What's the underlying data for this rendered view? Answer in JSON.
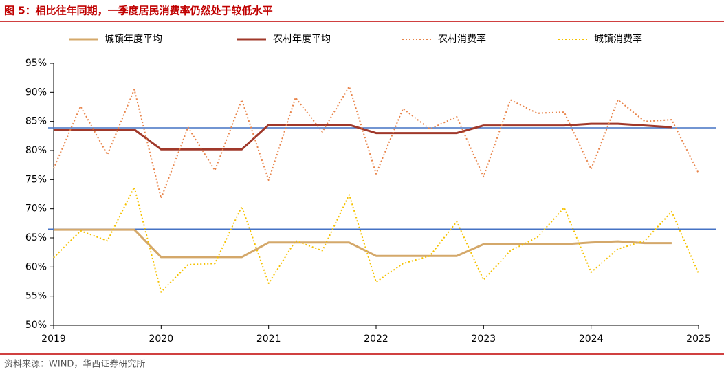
{
  "chart_data": {
    "type": "line",
    "title": "图 5：相比往年同期，一季度居民消费率仍然处于较低水平",
    "source": "资料来源：WIND，华西证券研究所",
    "x": [
      2019,
      2019.25,
      2019.5,
      2019.75,
      2020,
      2020.25,
      2020.5,
      2020.75,
      2021,
      2021.25,
      2021.5,
      2021.75,
      2022,
      2022.25,
      2022.5,
      2022.75,
      2023,
      2023.25,
      2023.5,
      2023.75,
      2024,
      2024.25,
      2024.5,
      2024.75,
      2025
    ],
    "xlim": [
      2019,
      2025
    ],
    "xticks": [
      2019,
      2020,
      2021,
      2022,
      2023,
      2024,
      2025
    ],
    "ylim": [
      50,
      95
    ],
    "yticks": [
      {
        "value": 50,
        "label": "50%"
      },
      {
        "value": 55,
        "label": "55%"
      },
      {
        "value": 60,
        "label": "60%"
      },
      {
        "value": 65,
        "label": "65%"
      },
      {
        "value": 70,
        "label": "70%"
      },
      {
        "value": 75,
        "label": "75%"
      },
      {
        "value": 80,
        "label": "80%"
      },
      {
        "value": 85,
        "label": "85%"
      },
      {
        "value": 90,
        "label": "90%"
      },
      {
        "value": 95,
        "label": "95%"
      }
    ],
    "series": [
      {
        "name": "城镇年度平均",
        "color": "#d4a86a",
        "style": "solid",
        "values": [
          66.4,
          66.4,
          66.4,
          66.4,
          61.7,
          61.7,
          61.7,
          61.7,
          64.2,
          64.2,
          64.2,
          64.2,
          61.9,
          61.9,
          61.9,
          61.9,
          63.9,
          63.9,
          63.9,
          63.9,
          64.2,
          64.4,
          64.1,
          64.1,
          null
        ]
      },
      {
        "name": "农村年度平均",
        "color": "#a0382a",
        "style": "solid",
        "values": [
          83.6,
          83.6,
          83.6,
          83.6,
          80.2,
          80.2,
          80.2,
          80.2,
          84.4,
          84.4,
          84.4,
          84.4,
          83.0,
          83.0,
          83.0,
          83.0,
          84.3,
          84.3,
          84.3,
          84.3,
          84.6,
          84.6,
          84.3,
          84.0,
          null
        ]
      },
      {
        "name": "农村消费率",
        "color": "#e8844a",
        "style": "dotted",
        "values": [
          76.9,
          87.6,
          79.3,
          90.5,
          71.8,
          84.0,
          76.6,
          88.7,
          74.9,
          89.1,
          83.2,
          91.0,
          76.0,
          87.2,
          83.7,
          85.8,
          75.5,
          88.7,
          86.4,
          86.6,
          76.8,
          88.7,
          85.0,
          85.3,
          76.1
        ]
      },
      {
        "name": "城镇消费率",
        "color": "#f5c100",
        "style": "dotted",
        "values": [
          61.6,
          66.2,
          64.5,
          73.7,
          55.7,
          60.4,
          60.6,
          70.4,
          57.2,
          64.5,
          62.8,
          72.4,
          57.4,
          60.6,
          61.9,
          67.8,
          57.8,
          62.8,
          65.1,
          70.2,
          59.1,
          63.1,
          64.5,
          69.5,
          58.9
        ]
      }
    ],
    "hlines": [
      83.9,
      66.5
    ],
    "hline_color": "#4472c4",
    "accent_color": "#c00000"
  }
}
